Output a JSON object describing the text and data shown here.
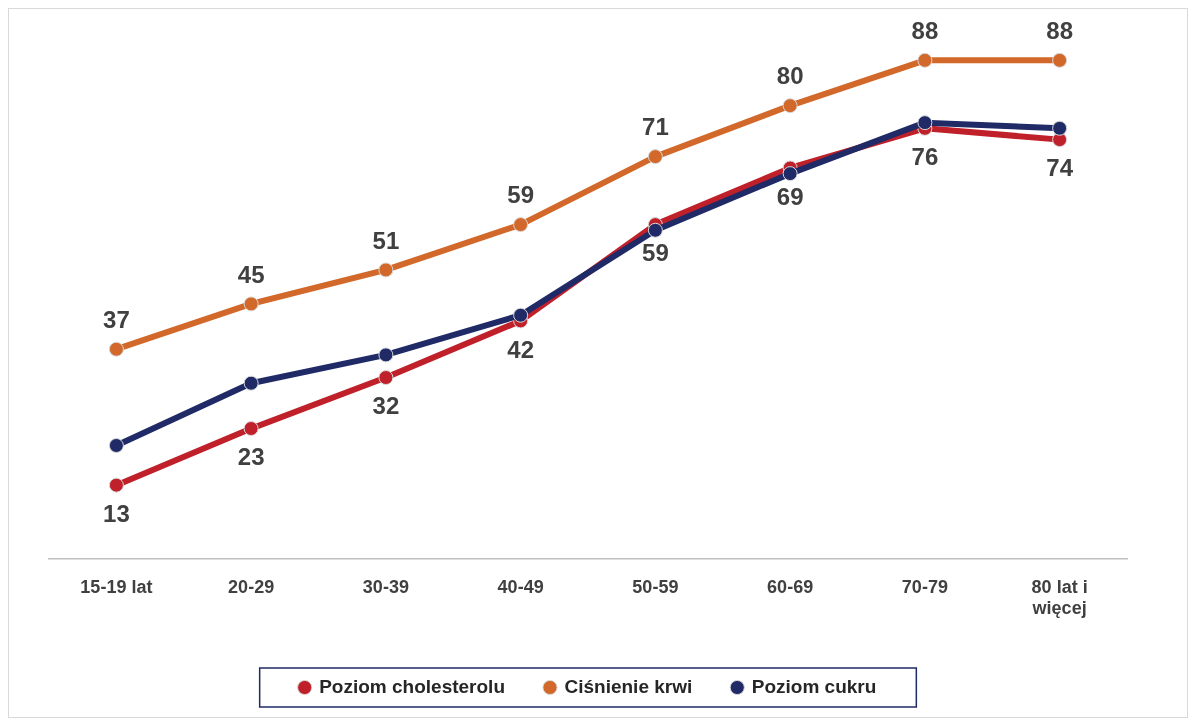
{
  "chart_data": {
    "type": "line",
    "categories": [
      "15-19 lat",
      "20-29",
      "30-39",
      "40-49",
      "50-59",
      "60-69",
      "70-79",
      "80 lat i więcej"
    ],
    "series": [
      {
        "name": "Poziom cholesterolu",
        "color": "#c0202a",
        "values": [
          13,
          23,
          32,
          42,
          59,
          69,
          76,
          74
        ],
        "value_labels": [
          "13",
          "23",
          "32",
          "42",
          "59",
          "69",
          "76",
          "74"
        ]
      },
      {
        "name": "Ciśnienie krwi",
        "color": "#d2692b",
        "values": [
          37,
          45,
          51,
          59,
          71,
          80,
          88,
          88
        ],
        "value_labels": [
          "37",
          "45",
          "51",
          "59",
          "71",
          "80",
          "88",
          "88"
        ]
      },
      {
        "name": "Poziom cukru",
        "color": "#1f2a66",
        "values": [
          20,
          31,
          36,
          43,
          58,
          68,
          77,
          76
        ]
      }
    ],
    "tick_labels": "x",
    "grid": false,
    "legend": "bottom",
    "marker": "circle",
    "line_style": "solid"
  }
}
